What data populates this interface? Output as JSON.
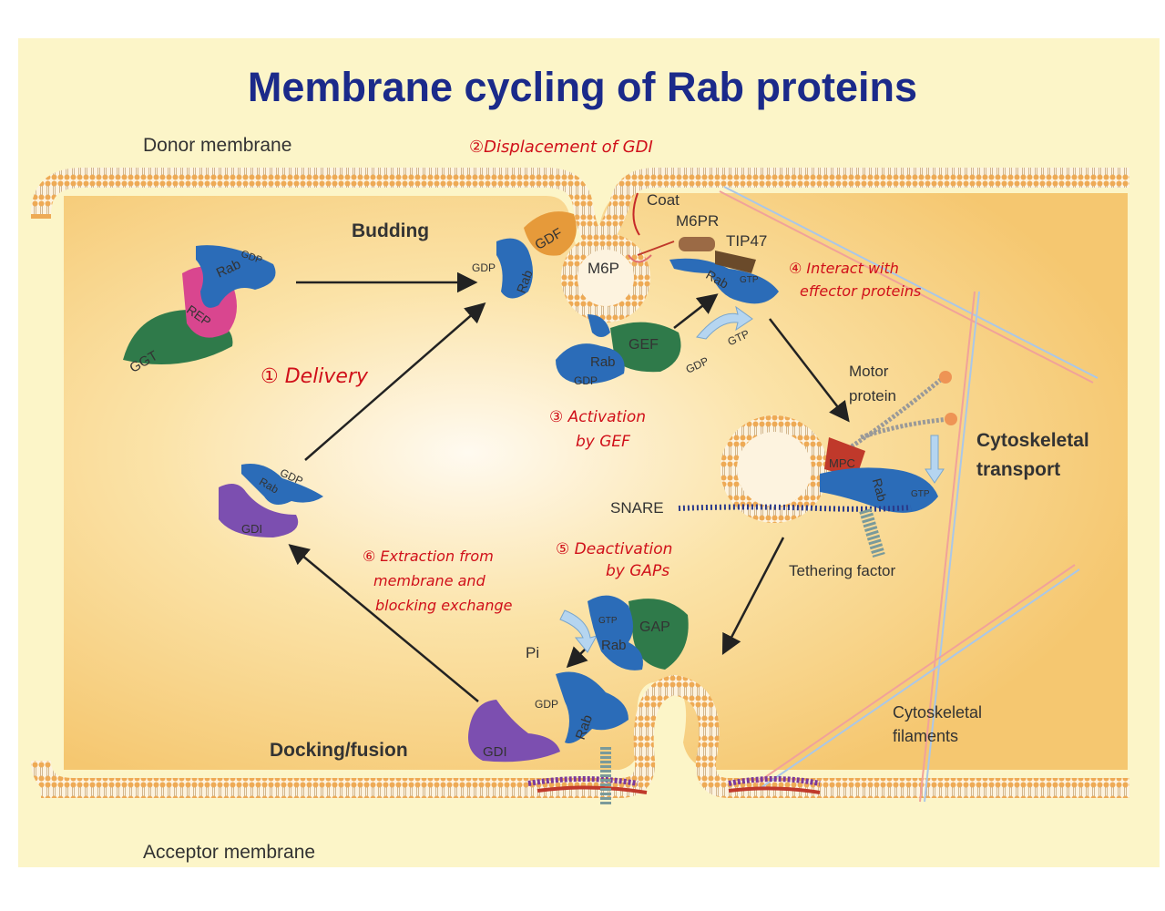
{
  "title": "Membrane cycling of Rab proteins",
  "membranes": {
    "donor": "Donor membrane",
    "acceptor": "Acceptor membrane"
  },
  "stages": {
    "budding": "Budding",
    "docking": "Docking/fusion",
    "cytoskeletal": "Cytoskeletal",
    "transport": "transport"
  },
  "proteins": {
    "rab": "Rab",
    "rep": "REP",
    "ggt": "GGT",
    "gdf": "GDF",
    "gdi": "GDI",
    "gef": "GEF",
    "gap": "GAP",
    "mpc": "MPC",
    "gdp": "GDP",
    "gtp": "GTP",
    "pi": "Pi",
    "coat": "Coat",
    "m6pr": "M6PR",
    "tip47": "TIP47",
    "m6p": "M6P",
    "motor_line1": "Motor",
    "motor_line2": "protein",
    "snare": "SNARE",
    "tethering": "Tethering factor",
    "filaments_line1": "Cytoskeletal",
    "filaments_line2": "filaments"
  },
  "annotations": {
    "a1": "① Delivery",
    "a2": "②Displacement of GDI",
    "a3_line1": "③ Activation",
    "a3_line2": "by GEF",
    "a4_line1": "④ Interact with",
    "a4_line2": "effector proteins",
    "a5_line1": "⑤ Deactivation",
    "a5_line2": "by GAPs",
    "a6_line1": "⑥ Extraction from",
    "a6_line2": "membrane and",
    "a6_line3": "blocking exchange"
  },
  "colors": {
    "title": "#1b2a8a",
    "rab": "#2b6cb8",
    "annotation": "#d0101a",
    "membrane": "#e8a24a"
  }
}
